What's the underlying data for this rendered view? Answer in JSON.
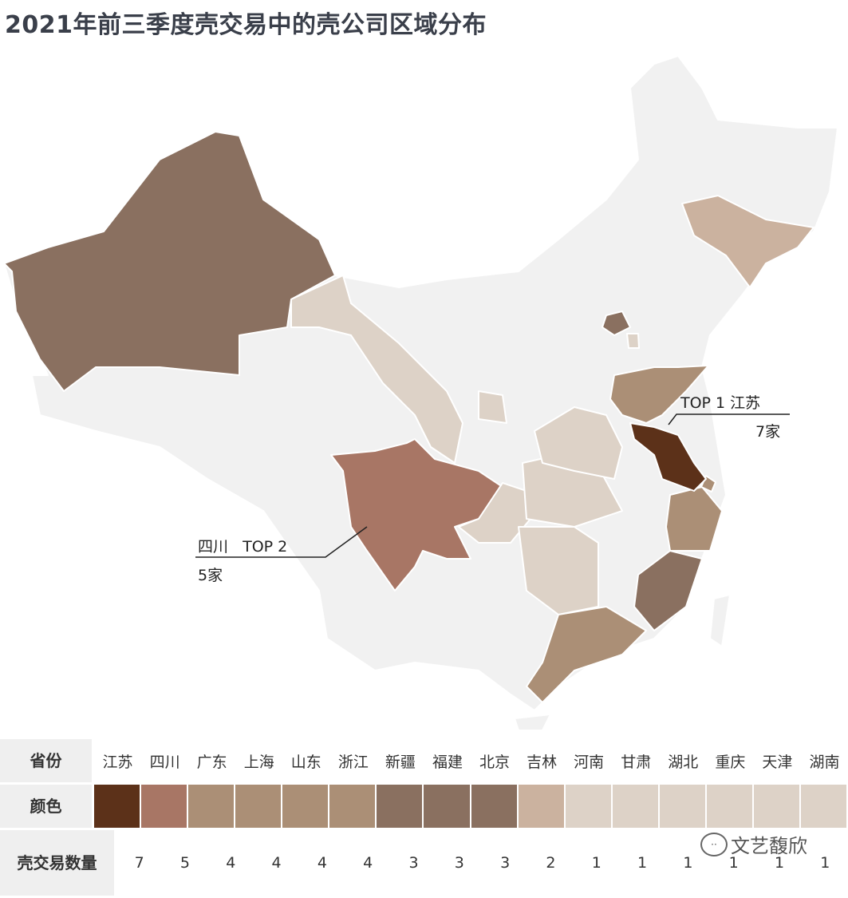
{
  "title": "2021年前三季度壳交易中的壳公司区域分布",
  "colors": {
    "base": "#f1f1f1",
    "level7": "#5c3119",
    "level5": "#a87665",
    "level4": "#ab8f76",
    "level3": "#8a7060",
    "level2": "#cbb29f",
    "level1": "#ddd2c7"
  },
  "annotations": {
    "top1_label": "TOP 1  江苏",
    "top1_count": "7家",
    "top2_label": "四川   TOP 2",
    "top2_count": "5家"
  },
  "legend": {
    "province_header": "省份",
    "color_header": "颜色",
    "count_header": "壳交易数量",
    "provinces": [
      {
        "name": "江苏",
        "count": "7",
        "level": "level7"
      },
      {
        "name": "四川",
        "count": "5",
        "level": "level5"
      },
      {
        "name": "广东",
        "count": "4",
        "level": "level4"
      },
      {
        "name": "上海",
        "count": "4",
        "level": "level4"
      },
      {
        "name": "山东",
        "count": "4",
        "level": "level4"
      },
      {
        "name": "浙江",
        "count": "4",
        "level": "level4"
      },
      {
        "name": "新疆",
        "count": "3",
        "level": "level3"
      },
      {
        "name": "福建",
        "count": "3",
        "level": "level3"
      },
      {
        "name": "北京",
        "count": "3",
        "level": "level3"
      },
      {
        "name": "吉林",
        "count": "2",
        "level": "level2"
      },
      {
        "name": "河南",
        "count": "1",
        "level": "level1"
      },
      {
        "name": "甘肃",
        "count": "1",
        "level": "level1"
      },
      {
        "name": "湖北",
        "count": "1",
        "level": "level1"
      },
      {
        "name": "重庆",
        "count": "1",
        "level": "level1"
      },
      {
        "name": "天津",
        "count": "1",
        "level": "level1"
      },
      {
        "name": "湖南",
        "count": "1",
        "level": "level1"
      }
    ]
  },
  "watermark": "文艺馥欣"
}
